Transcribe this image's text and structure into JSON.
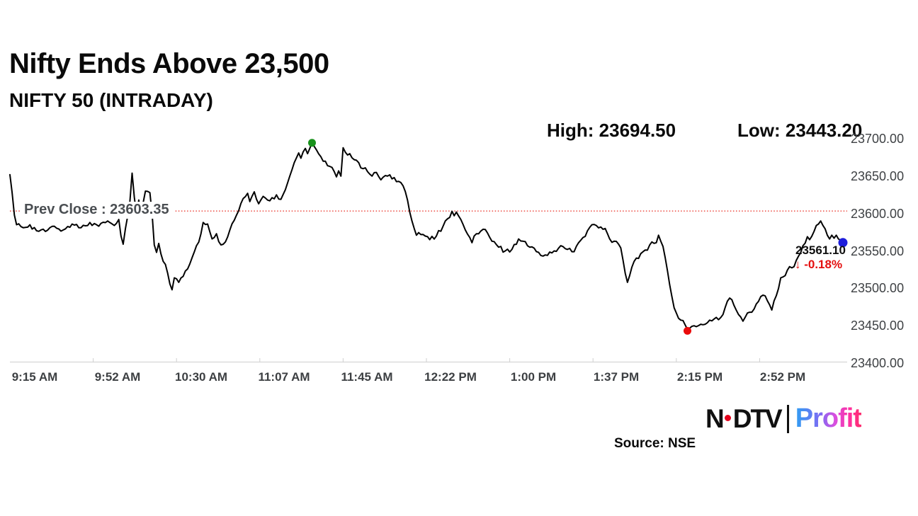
{
  "header": {
    "title": "Nifty Ends Above 23,500",
    "subtitle": "NIFTY 50 (INTRADAY)"
  },
  "footer": {
    "source": "Source: NSE",
    "logo": {
      "n": "N",
      "dtv": "DTV",
      "profit": "Profit"
    }
  },
  "colors": {
    "line": "#000000",
    "prev_close_line": "#e8251a",
    "high_dot": "#18911b",
    "low_dot": "#ea0b0b",
    "last_dot": "#1d1ddb",
    "change_text": "#e40f0f"
  },
  "chart_data": {
    "type": "line",
    "title": "Nifty Ends Above 23,500",
    "subtitle": "NIFTY 50 (INTRADAY)",
    "grid": false,
    "legend": false,
    "x_axis": {
      "unit": "time of day",
      "session_start": "9:15 AM",
      "session_end": "3:30 PM",
      "tick_interval_minutes": 37.5,
      "tick_labels": [
        "9:15 AM",
        "9:52 AM",
        "10:30 AM",
        "11:07 AM",
        "11:45 AM",
        "12:22 PM",
        "1:00 PM",
        "1:37 PM",
        "2:15 PM",
        "2:52 PM"
      ]
    },
    "y_axis": {
      "min": 23400,
      "max": 23700,
      "tick_step": 50,
      "side": "right",
      "tick_values": [
        23700,
        23650,
        23600,
        23550,
        23500,
        23450,
        23400
      ],
      "tick_labels": [
        "23700.00",
        "23650.00",
        "23600.00",
        "23550.00",
        "23500.00",
        "23450.00",
        "23400.00"
      ]
    },
    "prev_close": {
      "label": "Prev Close : 23603.35",
      "value": 23603.35
    },
    "high": {
      "display": "High: 23694.50",
      "value": 23694.5,
      "minutes_from_open": 136
    },
    "low": {
      "display": "Low: 23443.20",
      "value": 23443.2,
      "minutes_from_open": 305
    },
    "last": {
      "display": "23561.10",
      "value": 23561.1,
      "change_display": "↓ -0.18%",
      "change_pct": -0.18,
      "minutes_from_open": 375
    },
    "series": [
      {
        "name": "NIFTY 50",
        "points": [
          [
            0,
            23652
          ],
          [
            1,
            23628
          ],
          [
            2,
            23598
          ],
          [
            3,
            23585
          ],
          [
            6,
            23581
          ],
          [
            9,
            23585
          ],
          [
            12,
            23577
          ],
          [
            16,
            23576
          ],
          [
            20,
            23583
          ],
          [
            24,
            23578
          ],
          [
            28,
            23586
          ],
          [
            32,
            23581
          ],
          [
            36,
            23588
          ],
          [
            40,
            23583
          ],
          [
            44,
            23590
          ],
          [
            47,
            23584
          ],
          [
            49,
            23592
          ],
          [
            50,
            23570
          ],
          [
            51,
            23559
          ],
          [
            52,
            23580
          ],
          [
            54,
            23615
          ],
          [
            55,
            23654
          ],
          [
            56,
            23622
          ],
          [
            57,
            23598
          ],
          [
            58,
            23618
          ],
          [
            59,
            23595
          ],
          [
            61,
            23630
          ],
          [
            63,
            23628
          ],
          [
            64,
            23600
          ],
          [
            65,
            23558
          ],
          [
            66,
            23548
          ],
          [
            67,
            23560
          ],
          [
            68,
            23546
          ],
          [
            70,
            23532
          ],
          [
            72,
            23506
          ],
          [
            73,
            23498
          ],
          [
            74,
            23514
          ],
          [
            76,
            23508
          ],
          [
            78,
            23516
          ],
          [
            80,
            23526
          ],
          [
            82,
            23541
          ],
          [
            84,
            23557
          ],
          [
            86,
            23573
          ],
          [
            87,
            23588
          ],
          [
            89,
            23586
          ],
          [
            91,
            23566
          ],
          [
            93,
            23573
          ],
          [
            95,
            23558
          ],
          [
            97,
            23562
          ],
          [
            99,
            23578
          ],
          [
            101,
            23591
          ],
          [
            103,
            23604
          ],
          [
            105,
            23620
          ],
          [
            107,
            23627
          ],
          [
            108,
            23616
          ],
          [
            110,
            23629
          ],
          [
            112,
            23613
          ],
          [
            114,
            23623
          ],
          [
            117,
            23617
          ],
          [
            120,
            23625
          ],
          [
            122,
            23619
          ],
          [
            124,
            23632
          ],
          [
            126,
            23650
          ],
          [
            128,
            23668
          ],
          [
            130,
            23681
          ],
          [
            131,
            23674
          ],
          [
            133,
            23687
          ],
          [
            134,
            23680
          ],
          [
            136,
            23694.5
          ],
          [
            138,
            23685
          ],
          [
            140,
            23676
          ],
          [
            142,
            23670
          ],
          [
            144,
            23663
          ],
          [
            146,
            23656
          ],
          [
            147,
            23649
          ],
          [
            148,
            23657
          ],
          [
            149,
            23650
          ],
          [
            150,
            23688
          ],
          [
            151,
            23682
          ],
          [
            153,
            23680
          ],
          [
            155,
            23672
          ],
          [
            157,
            23668
          ],
          [
            159,
            23660
          ],
          [
            161,
            23656
          ],
          [
            163,
            23650
          ],
          [
            165,
            23655
          ],
          [
            167,
            23645
          ],
          [
            170,
            23650
          ],
          [
            173,
            23648
          ],
          [
            175,
            23643
          ],
          [
            177,
            23637
          ],
          [
            179,
            23618
          ],
          [
            181,
            23590
          ],
          [
            183,
            23571
          ],
          [
            186,
            23572
          ],
          [
            189,
            23565
          ],
          [
            192,
            23570
          ],
          [
            195,
            23583
          ],
          [
            197,
            23593
          ],
          [
            199,
            23603
          ],
          [
            200,
            23597
          ],
          [
            201,
            23602
          ],
          [
            203,
            23592
          ],
          [
            205,
            23578
          ],
          [
            207,
            23568
          ],
          [
            208,
            23561
          ],
          [
            209,
            23570
          ],
          [
            211,
            23573
          ],
          [
            213,
            23579
          ],
          [
            215,
            23574
          ],
          [
            217,
            23563
          ],
          [
            220,
            23555
          ],
          [
            223,
            23550
          ],
          [
            226,
            23552
          ],
          [
            229,
            23566
          ],
          [
            231,
            23563
          ],
          [
            234,
            23555
          ],
          [
            238,
            23548
          ],
          [
            242,
            23544
          ],
          [
            245,
            23550
          ],
          [
            248,
            23557
          ],
          [
            251,
            23552
          ],
          [
            254,
            23549
          ],
          [
            256,
            23561
          ],
          [
            258,
            23568
          ],
          [
            260,
            23577
          ],
          [
            262,
            23585
          ],
          [
            264,
            23584
          ],
          [
            266,
            23582
          ],
          [
            268,
            23580
          ],
          [
            270,
            23566
          ],
          [
            272,
            23563
          ],
          [
            274,
            23559
          ],
          [
            275,
            23554
          ],
          [
            276,
            23538
          ],
          [
            277,
            23520
          ],
          [
            278,
            23508
          ],
          [
            279,
            23517
          ],
          [
            281,
            23536
          ],
          [
            283,
            23540
          ],
          [
            285,
            23549
          ],
          [
            287,
            23551
          ],
          [
            289,
            23562
          ],
          [
            291,
            23561
          ],
          [
            292,
            23571
          ],
          [
            294,
            23556
          ],
          [
            295,
            23541
          ],
          [
            297,
            23505
          ],
          [
            299,
            23474
          ],
          [
            301,
            23460
          ],
          [
            303,
            23457
          ],
          [
            305,
            23445
          ],
          [
            308,
            23450
          ],
          [
            311,
            23452
          ],
          [
            314,
            23454
          ],
          [
            317,
            23459
          ],
          [
            319,
            23458
          ],
          [
            321,
            23465
          ],
          [
            324,
            23487
          ],
          [
            326,
            23477
          ],
          [
            328,
            23465
          ],
          [
            330,
            23456
          ],
          [
            332,
            23467
          ],
          [
            334,
            23468
          ],
          [
            336,
            23479
          ],
          [
            338,
            23489
          ],
          [
            340,
            23490
          ],
          [
            342,
            23478
          ],
          [
            343,
            23471
          ],
          [
            345,
            23490
          ],
          [
            347,
            23514
          ],
          [
            349,
            23517
          ],
          [
            351,
            23529
          ],
          [
            353,
            23529
          ],
          [
            355,
            23543
          ],
          [
            357,
            23557
          ],
          [
            359,
            23569
          ],
          [
            360,
            23565
          ],
          [
            362,
            23576
          ],
          [
            364,
            23586
          ],
          [
            365,
            23590
          ],
          [
            366,
            23584
          ],
          [
            368,
            23571
          ],
          [
            369,
            23566
          ],
          [
            370,
            23571
          ],
          [
            371,
            23567
          ],
          [
            372,
            23571
          ],
          [
            373,
            23566
          ],
          [
            374,
            23564
          ],
          [
            375,
            23561.1
          ]
        ]
      }
    ]
  }
}
